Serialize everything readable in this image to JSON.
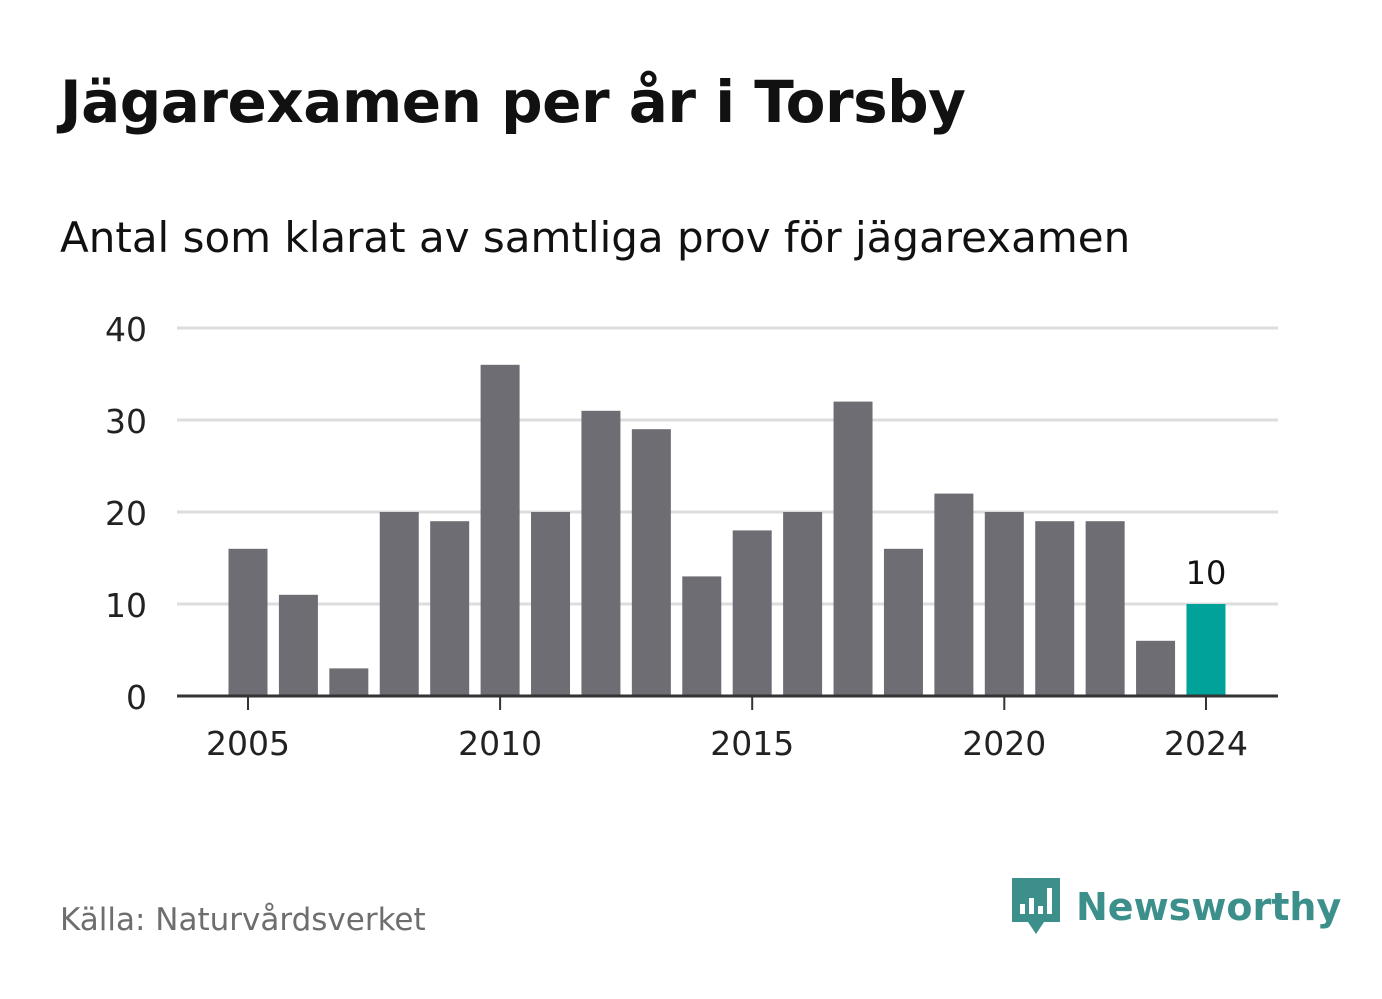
{
  "title": "Jägarexamen per år i Torsby",
  "subtitle": "Antal som klarat av samtliga prov för jägarexamen",
  "source": "Källa: Naturvårdsverket",
  "brand": {
    "name": "Newsworthy",
    "icon": "newsworthy-logo-icon"
  },
  "colors": {
    "bar": "#6e6d73",
    "highlight": "#00a29a",
    "grid": "#dddddd",
    "axis": "#333333",
    "brand": "#3c8f8a"
  },
  "chart_data": {
    "type": "bar",
    "x": [
      2005,
      2006,
      2007,
      2008,
      2009,
      2010,
      2011,
      2012,
      2013,
      2014,
      2015,
      2016,
      2017,
      2018,
      2019,
      2020,
      2021,
      2022,
      2023,
      2024
    ],
    "values": [
      16,
      11,
      3,
      20,
      19,
      36,
      20,
      31,
      29,
      13,
      18,
      20,
      32,
      16,
      22,
      20,
      19,
      19,
      6,
      10
    ],
    "highlight_index": 19,
    "data_label": "10",
    "ylim": [
      0,
      40
    ],
    "yticks": [
      0,
      10,
      20,
      30,
      40
    ],
    "xticks": [
      2005,
      2010,
      2015,
      2020,
      2024
    ],
    "grid": true,
    "title": "Jägarexamen per år i Torsby",
    "subtitle": "Antal som klarat av samtliga prov för jägarexamen",
    "xlabel": "",
    "ylabel": ""
  }
}
